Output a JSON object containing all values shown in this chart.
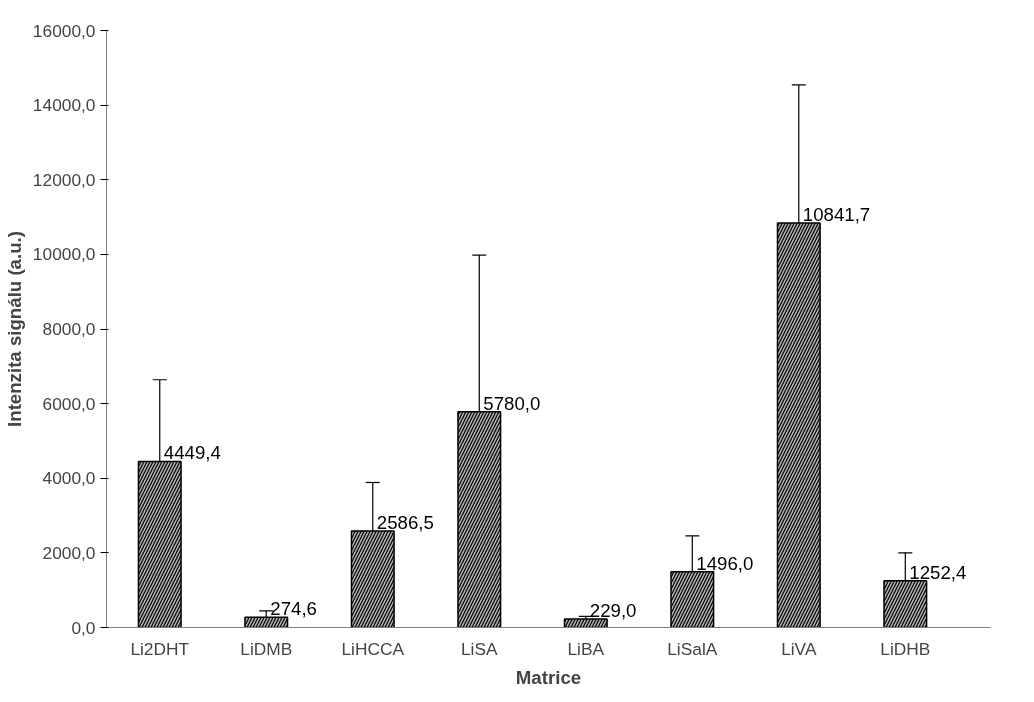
{
  "chart_data": {
    "type": "bar",
    "xlabel": "Matrice",
    "ylabel": "Intenzita signálu (a.u.)",
    "categories": [
      "Li2DHT",
      "LiDMB",
      "LiHCCA",
      "LiSA",
      "LiBA",
      "LiSalA",
      "LiVA",
      "LiDHB"
    ],
    "values": [
      4449.4,
      274.6,
      2586.5,
      5780.0,
      229.0,
      1496.0,
      10841.7,
      1252.4
    ],
    "errors": [
      2190,
      170,
      1300,
      4200,
      70,
      960,
      3700,
      750
    ],
    "value_labels": [
      "4449,4",
      "274,6",
      "2586,5",
      "5780,0",
      "229,0",
      "1496,0",
      "10841,7",
      "1252,4"
    ],
    "color": "#b0b0b0",
    "ylim": [
      0,
      16000
    ],
    "yticks": [
      {
        "value": 0,
        "label": "0,0"
      },
      {
        "value": 2000,
        "label": "2000,0"
      },
      {
        "value": 4000,
        "label": "4000,0"
      },
      {
        "value": 6000,
        "label": "6000,0"
      },
      {
        "value": 8000,
        "label": "8000,0"
      },
      {
        "value": 10000,
        "label": "10000,0"
      },
      {
        "value": 12000,
        "label": "12000,0"
      },
      {
        "value": 14000,
        "label": "14000,0"
      },
      {
        "value": 16000,
        "label": "16000,0"
      }
    ],
    "grid": false
  }
}
